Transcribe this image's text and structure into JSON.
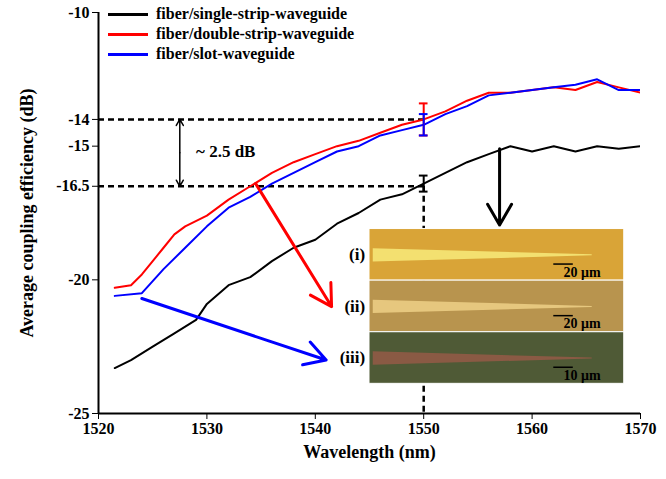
{
  "chart_data": {
    "type": "line",
    "xlabel": "Wavelength (nm)",
    "ylabel": "Average coupling efficiency (dB)",
    "xlim": [
      1520,
      1570
    ],
    "xticks": [
      1520,
      1530,
      1540,
      1550,
      1560,
      1570
    ],
    "ylim": [
      -25,
      -10
    ],
    "yticks": [
      -25,
      -20,
      -16.5,
      -15,
      -14,
      -10
    ],
    "grid": false,
    "legend": "top-left",
    "series": [
      {
        "name": "fiber/single-strip-waveguide",
        "color": "#000000",
        "x": [
          1521.5,
          1523,
          1525,
          1527,
          1529,
          1530,
          1532,
          1534,
          1536,
          1538,
          1540,
          1542,
          1544,
          1546,
          1548,
          1550,
          1552,
          1554,
          1556,
          1558,
          1560,
          1562,
          1564,
          1566,
          1568,
          1570
        ],
        "values": [
          -23.3,
          -23.0,
          -22.5,
          -22.0,
          -21.5,
          -20.9,
          -20.2,
          -19.9,
          -19.3,
          -18.8,
          -18.5,
          -17.9,
          -17.5,
          -17.0,
          -16.8,
          -16.4,
          -16.0,
          -15.6,
          -15.3,
          -15.0,
          -15.2,
          -15.0,
          -15.2,
          -15.0,
          -15.1,
          -15.0
        ],
        "error": {
          "x": 1550,
          "y": -16.4,
          "err": 0.3
        }
      },
      {
        "name": "fiber/double-strip-waveguide",
        "color": "#ff0000",
        "x": [
          1521.5,
          1523,
          1524,
          1525,
          1526,
          1527,
          1528,
          1530,
          1532,
          1534,
          1536,
          1538,
          1540,
          1542,
          1544,
          1546,
          1548,
          1550,
          1552,
          1554,
          1556,
          1558,
          1560,
          1562,
          1564,
          1566,
          1568,
          1570
        ],
        "values": [
          -20.3,
          -20.2,
          -19.8,
          -19.3,
          -18.8,
          -18.3,
          -18.0,
          -17.6,
          -17.0,
          -16.5,
          -16.0,
          -15.6,
          -15.3,
          -15.0,
          -14.8,
          -14.5,
          -14.2,
          -14.0,
          -13.7,
          -13.3,
          -13.0,
          -13.0,
          -12.9,
          -12.8,
          -12.9,
          -12.6,
          -12.8,
          -13.0
        ],
        "error": {
          "x": 1550,
          "y": -14.0,
          "err": 0.6
        }
      },
      {
        "name": "fiber/slot-waveguide",
        "color": "#0000ff",
        "x": [
          1521.5,
          1524,
          1526,
          1528,
          1530,
          1532,
          1534,
          1536,
          1538,
          1540,
          1542,
          1544,
          1546,
          1548,
          1550,
          1552,
          1554,
          1556,
          1558,
          1560,
          1562,
          1564,
          1566,
          1568,
          1570
        ],
        "values": [
          -20.6,
          -20.5,
          -19.6,
          -18.8,
          -18.0,
          -17.3,
          -16.9,
          -16.4,
          -16.0,
          -15.6,
          -15.2,
          -15.0,
          -14.6,
          -14.4,
          -14.2,
          -13.8,
          -13.5,
          -13.1,
          -13.0,
          -12.9,
          -12.8,
          -12.7,
          -12.5,
          -12.9,
          -12.9
        ],
        "error": {
          "x": 1550,
          "y": -14.2,
          "err": 0.4
        }
      }
    ],
    "reference_lines": {
      "y": [
        -14,
        -16.5
      ],
      "x": 1550
    },
    "annotations": [
      {
        "text": "~ 2.5 dB",
        "x": 1529,
        "y": -15.2
      }
    ],
    "inset": {
      "panels": [
        {
          "label": "(i)",
          "scale_bar": "20 μm"
        },
        {
          "label": "(ii)",
          "scale_bar": "20 μm"
        },
        {
          "label": "(iii)",
          "scale_bar": "10 μm"
        }
      ]
    }
  }
}
